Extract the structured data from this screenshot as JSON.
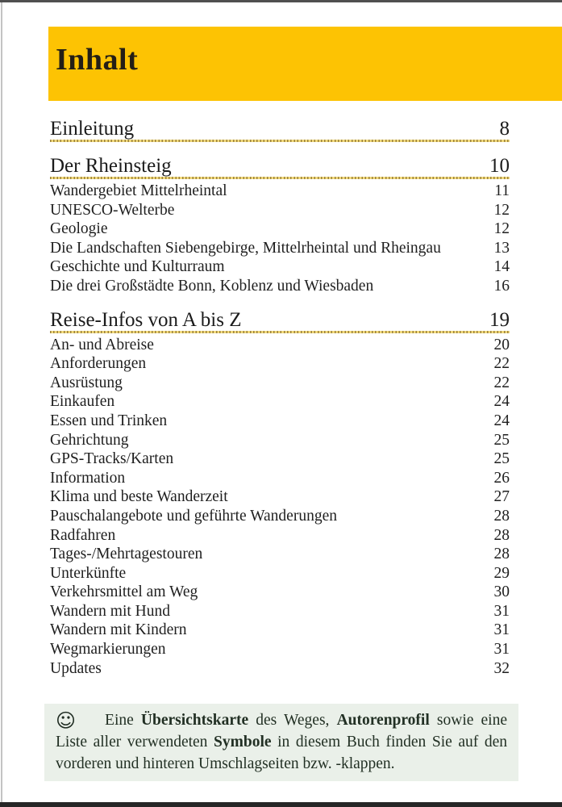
{
  "page": {
    "title": "Inhalt"
  },
  "toc": {
    "sections": [
      {
        "label": "Einleitung",
        "page": "8",
        "items": []
      },
      {
        "label": "Der Rheinsteig",
        "page": "10",
        "items": [
          {
            "label": "Wandergebiet Mittelrheintal",
            "page": "11"
          },
          {
            "label": "UNESCO-Welterbe",
            "page": "12"
          },
          {
            "label": "Geologie",
            "page": "12"
          },
          {
            "label": "Die Landschaften Siebengebirge, Mittelrheintal und Rheingau",
            "page": "13"
          },
          {
            "label": "Geschichte und Kulturraum",
            "page": "14"
          },
          {
            "label": "Die drei Großstädte Bonn, Koblenz und Wiesbaden",
            "page": "16"
          }
        ]
      },
      {
        "label": "Reise-Infos von A bis Z",
        "page": "19",
        "items": [
          {
            "label": "An- und Abreise",
            "page": "20"
          },
          {
            "label": "Anforderungen",
            "page": "22"
          },
          {
            "label": "Ausrüstung",
            "page": "22"
          },
          {
            "label": "Einkaufen",
            "page": "24"
          },
          {
            "label": "Essen und Trinken",
            "page": "24"
          },
          {
            "label": "Gehrichtung",
            "page": "25"
          },
          {
            "label": "GPS-Tracks/Karten",
            "page": "25"
          },
          {
            "label": "Information",
            "page": "26"
          },
          {
            "label": "Klima und beste Wanderzeit",
            "page": "27"
          },
          {
            "label": "Pauschalangebote und geführte Wanderungen",
            "page": "28"
          },
          {
            "label": "Radfahren",
            "page": "28"
          },
          {
            "label": "Tages-/Mehrtagestouren",
            "page": "28"
          },
          {
            "label": "Unterkünfte",
            "page": "29"
          },
          {
            "label": "Verkehrsmittel am Weg",
            "page": "30"
          },
          {
            "label": "Wandern mit Hund",
            "page": "31"
          },
          {
            "label": "Wandern mit Kindern",
            "page": "31"
          },
          {
            "label": "Wegmarkierungen",
            "page": "31"
          },
          {
            "label": "Updates",
            "page": "32"
          }
        ]
      }
    ]
  },
  "note": {
    "icon": "smiley-icon",
    "icon_char": "☺",
    "segments": [
      {
        "text": "Eine ",
        "bold": false
      },
      {
        "text": "Übersichtskarte",
        "bold": true
      },
      {
        "text": " des Weges, ",
        "bold": false
      },
      {
        "text": "Autorenprofil",
        "bold": true
      },
      {
        "text": " sowie eine Liste aller verwendeten ",
        "bold": false
      },
      {
        "text": "Symbole",
        "bold": true
      },
      {
        "text": " in diesem Buch finden Sie auf den vorderen und hinteren Umschlagseiten bzw. -klappen.",
        "bold": false
      }
    ]
  },
  "colors": {
    "accent_yellow": "#FDC303",
    "leader_gold": "#C7A445",
    "note_background": "#EAF0E9",
    "heading_text": "#241F16",
    "body_text": "#1F1F1F",
    "page_edge_dark": "#262626"
  }
}
